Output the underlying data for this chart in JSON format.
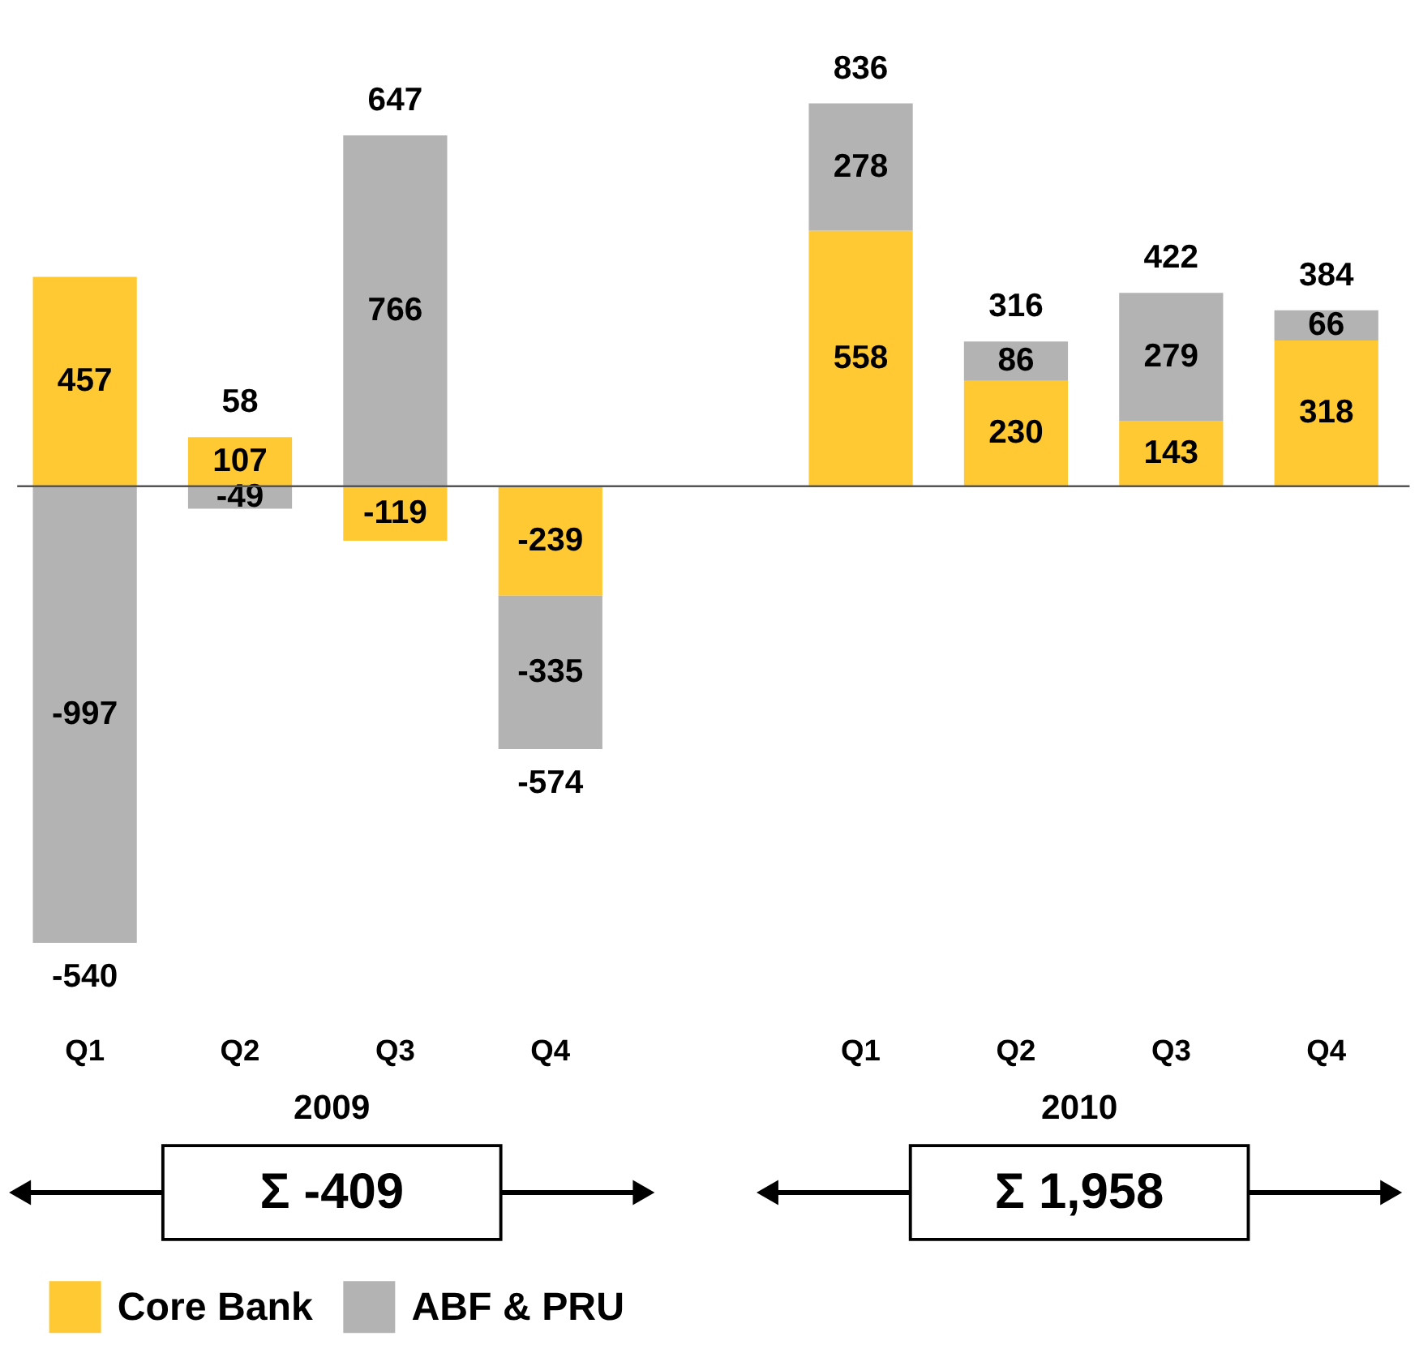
{
  "chart_data": {
    "type": "bar",
    "stacked": true,
    "data_labels": true,
    "grid": false,
    "legend": "bottom left",
    "categories": [
      "Q1",
      "Q2",
      "Q3",
      "Q4",
      null,
      "Q1",
      "Q2",
      "Q3",
      "Q4"
    ],
    "series": [
      {
        "name": "Core Bank",
        "color": "#ffc933",
        "values": [
          457,
          107,
          -119,
          -239,
          null,
          558,
          230,
          143,
          318
        ]
      },
      {
        "name": "ABF & PRU",
        "color": "#b3b3b3",
        "values": [
          -997,
          -49,
          766,
          -335,
          null,
          278,
          86,
          279,
          66
        ]
      }
    ],
    "totals": [
      "-540",
      "58",
      "647",
      "-574",
      null,
      "836",
      "316",
      "422",
      "384"
    ],
    "annotations": [
      "2009",
      "2010",
      "Σ -409",
      "Σ 1,958"
    ]
  }
}
